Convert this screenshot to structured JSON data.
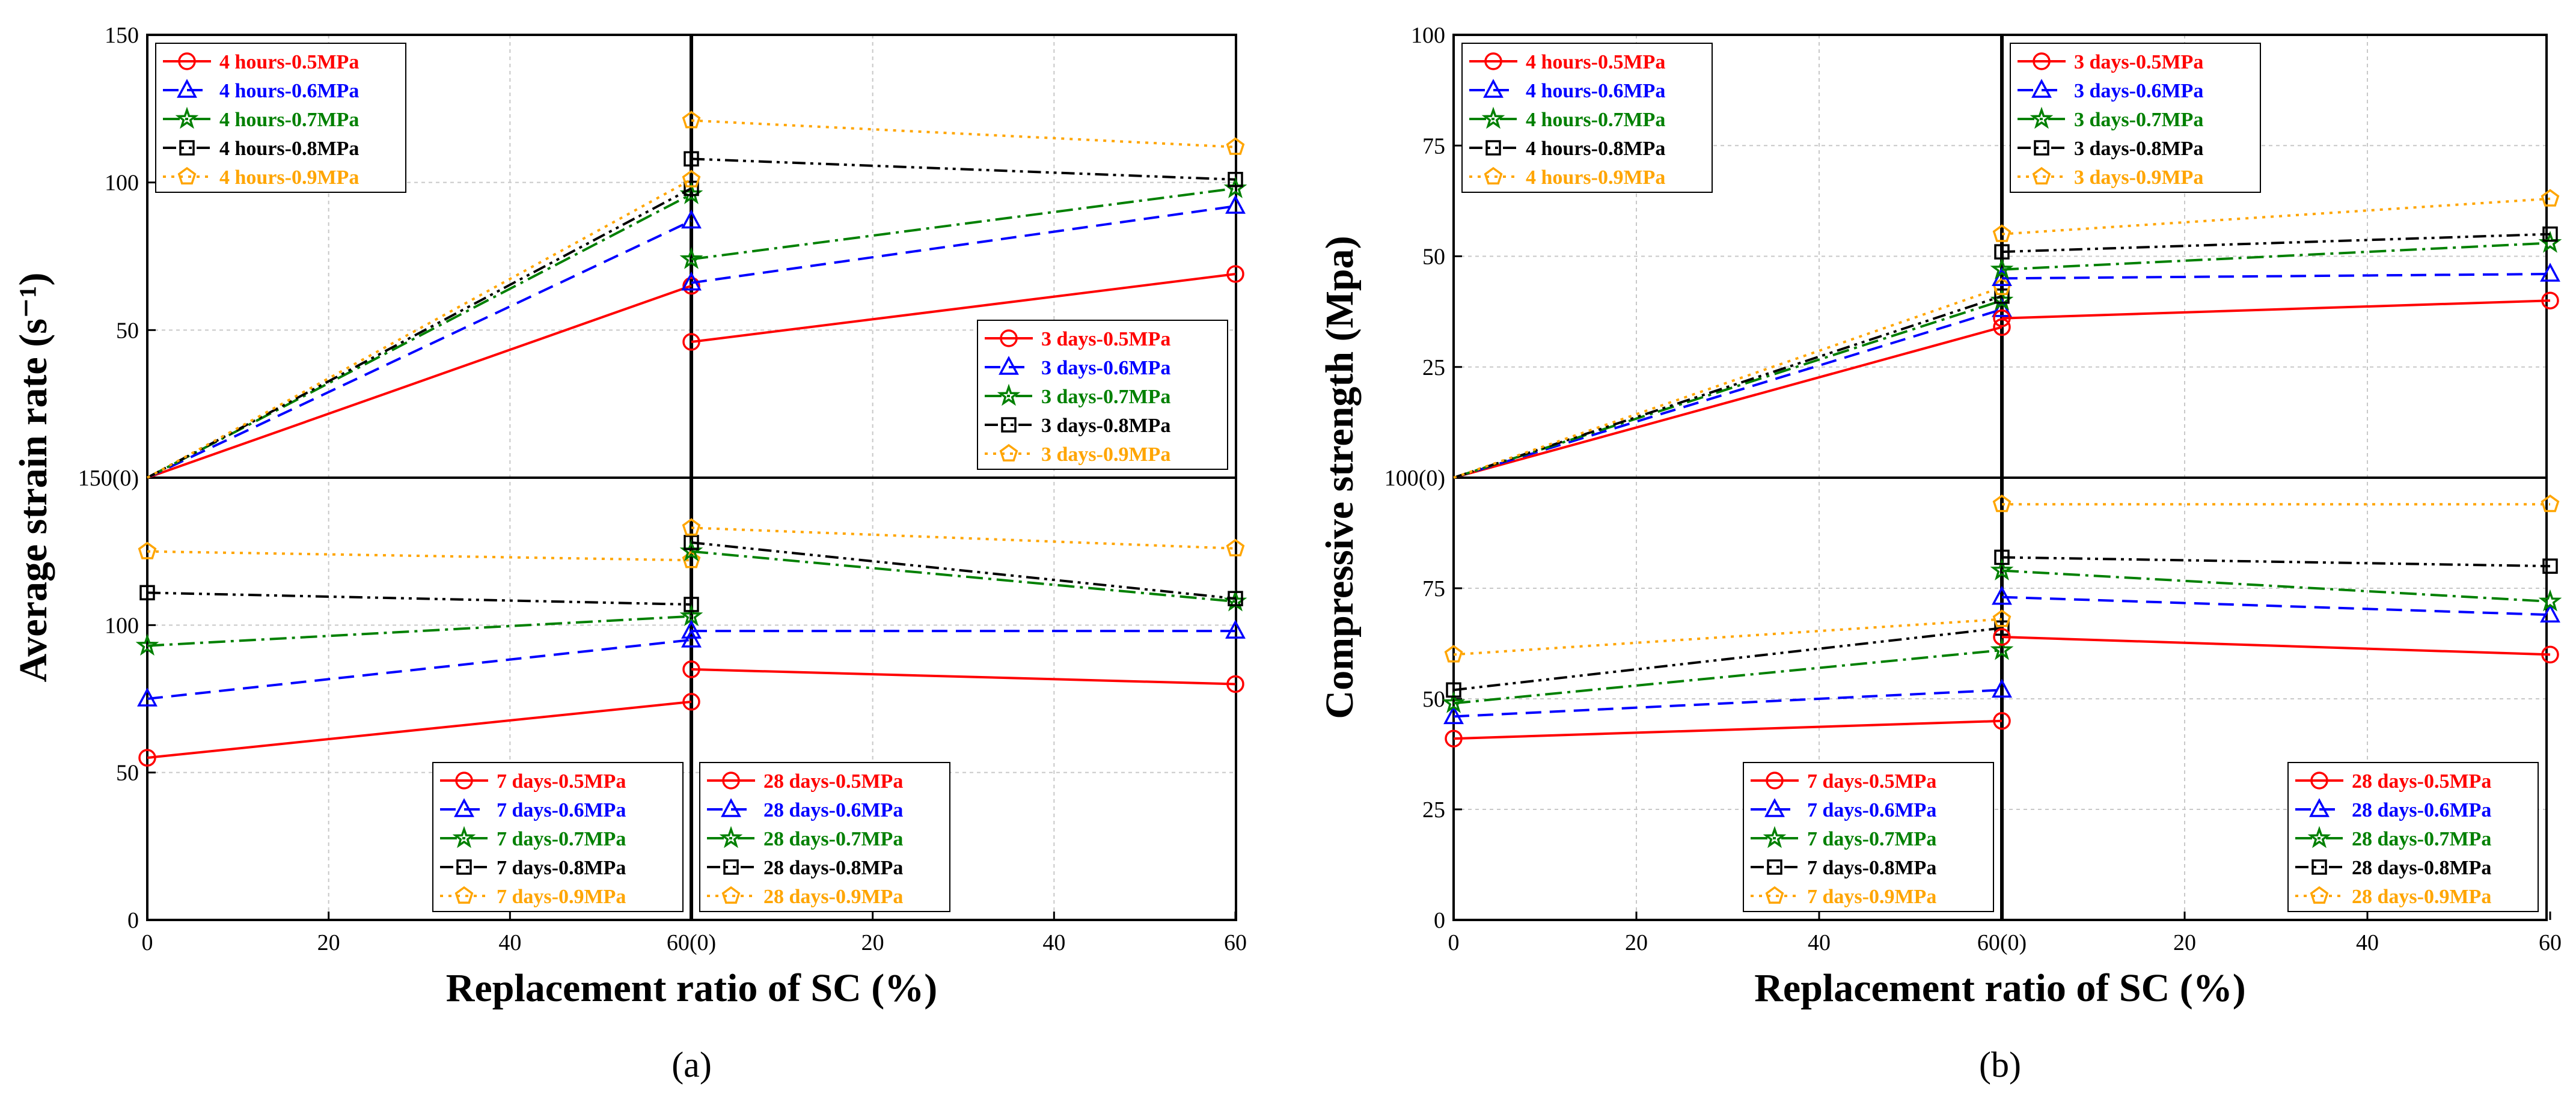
{
  "colors": {
    "p05": "#ff0000",
    "p06": "#0000ff",
    "p07": "#008000",
    "p08": "#000000",
    "p09": "#ffa500",
    "grid": "#c8c8c8",
    "axis": "#000000"
  },
  "chart_data": [
    {
      "id": "a",
      "type": "line",
      "caption": "(a)",
      "xlabel": "Replacement ratio of SC (%)",
      "ylabel": "Average strain rate (s⁻¹)",
      "x_ticks_left": [
        "0",
        "20",
        "40",
        "60(0)"
      ],
      "x_ticks_right": [
        "20",
        "40",
        "60"
      ],
      "xlim": [
        0,
        60
      ],
      "upper_y": {
        "ylim": [
          0,
          150
        ],
        "ticks": [
          "150(0)",
          "50",
          "100",
          "150"
        ]
      },
      "lower_y": {
        "ylim": [
          0,
          150
        ],
        "ticks": [
          "0",
          "50",
          "100"
        ]
      },
      "panels": [
        {
          "id": "a-top-left",
          "row": "top",
          "col": "left",
          "legend_position": "top-left",
          "series": [
            {
              "name": "4 hours-0.5MPa",
              "pressure": "p05",
              "x": [
                0,
                60
              ],
              "values": [
                0,
                65
              ]
            },
            {
              "name": "4 hours-0.6MPa",
              "pressure": "p06",
              "x": [
                0,
                60
              ],
              "values": [
                0,
                87
              ]
            },
            {
              "name": "4 hours-0.7MPa",
              "pressure": "p07",
              "x": [
                0,
                60
              ],
              "values": [
                0,
                96
              ]
            },
            {
              "name": "4 hours-0.8MPa",
              "pressure": "p08",
              "x": [
                0,
                60
              ],
              "values": [
                0,
                98
              ]
            },
            {
              "name": "4 hours-0.9MPa",
              "pressure": "p09",
              "x": [
                0,
                60
              ],
              "values": [
                0,
                101
              ]
            }
          ]
        },
        {
          "id": "a-top-right",
          "row": "top",
          "col": "right",
          "legend_position": "bottom-right",
          "series": [
            {
              "name": "3 days-0.5MPa",
              "pressure": "p05",
              "x": [
                0,
                60
              ],
              "values": [
                46,
                69
              ]
            },
            {
              "name": "3 days-0.6MPa",
              "pressure": "p06",
              "x": [
                0,
                60
              ],
              "values": [
                66,
                92
              ]
            },
            {
              "name": "3 days-0.7MPa",
              "pressure": "p07",
              "x": [
                0,
                60
              ],
              "values": [
                74,
                98
              ]
            },
            {
              "name": "3 days-0.8MPa",
              "pressure": "p08",
              "x": [
                0,
                60
              ],
              "values": [
                108,
                101
              ]
            },
            {
              "name": "3 days-0.9MPa",
              "pressure": "p09",
              "x": [
                0,
                60
              ],
              "values": [
                121,
                112
              ]
            }
          ]
        },
        {
          "id": "a-bottom-left",
          "row": "bottom",
          "col": "left",
          "legend_position": "bottom-right",
          "series": [
            {
              "name": "7 days-0.5MPa",
              "pressure": "p05",
              "x": [
                0,
                60
              ],
              "values": [
                55,
                74
              ]
            },
            {
              "name": "7 days-0.6MPa",
              "pressure": "p06",
              "x": [
                0,
                60
              ],
              "values": [
                75,
                95
              ]
            },
            {
              "name": "7 days-0.7MPa",
              "pressure": "p07",
              "x": [
                0,
                60
              ],
              "values": [
                93,
                103
              ]
            },
            {
              "name": "7 days-0.8MPa",
              "pressure": "p08",
              "x": [
                0,
                60
              ],
              "values": [
                111,
                107
              ]
            },
            {
              "name": "7 days-0.9MPa",
              "pressure": "p09",
              "x": [
                0,
                60
              ],
              "values": [
                125,
                122
              ]
            }
          ]
        },
        {
          "id": "a-bottom-right",
          "row": "bottom",
          "col": "right",
          "legend_position": "bottom-left",
          "series": [
            {
              "name": "28 days-0.5MPa",
              "pressure": "p05",
              "x": [
                0,
                60
              ],
              "values": [
                85,
                80
              ]
            },
            {
              "name": "28 days-0.6MPa",
              "pressure": "p06",
              "x": [
                0,
                60
              ],
              "values": [
                98,
                98
              ]
            },
            {
              "name": "28 days-0.7MPa",
              "pressure": "p07",
              "x": [
                0,
                60
              ],
              "values": [
                125,
                108
              ]
            },
            {
              "name": "28 days-0.8MPa",
              "pressure": "p08",
              "x": [
                0,
                60
              ],
              "values": [
                128,
                109
              ]
            },
            {
              "name": "28 days-0.9MPa",
              "pressure": "p09",
              "x": [
                0,
                60
              ],
              "values": [
                133,
                126
              ]
            }
          ]
        }
      ]
    },
    {
      "id": "b",
      "type": "line",
      "caption": "(b)",
      "xlabel": "Replacement ratio of SC (%)",
      "ylabel": "Compressive strength (Mpa)",
      "x_ticks_left": [
        "0",
        "20",
        "40",
        "60(0)"
      ],
      "x_ticks_right": [
        "20",
        "40",
        "60"
      ],
      "xlim": [
        0,
        60
      ],
      "upper_y": {
        "ylim": [
          0,
          100
        ],
        "ticks": [
          "100(0)",
          "25",
          "50",
          "75",
          "100"
        ]
      },
      "lower_y": {
        "ylim": [
          0,
          100
        ],
        "ticks": [
          "0",
          "25",
          "50",
          "75"
        ]
      },
      "panels": [
        {
          "id": "b-top-left",
          "row": "top",
          "col": "left",
          "legend_position": "top-left",
          "series": [
            {
              "name": "4 hours-0.5MPa",
              "pressure": "p05",
              "x": [
                0,
                60
              ],
              "values": [
                0,
                34
              ]
            },
            {
              "name": "4 hours-0.6MPa",
              "pressure": "p06",
              "x": [
                0,
                60
              ],
              "values": [
                0,
                38
              ]
            },
            {
              "name": "4 hours-0.7MPa",
              "pressure": "p07",
              "x": [
                0,
                60
              ],
              "values": [
                0,
                40
              ]
            },
            {
              "name": "4 hours-0.8MPa",
              "pressure": "p08",
              "x": [
                0,
                60
              ],
              "values": [
                0,
                41
              ]
            },
            {
              "name": "4 hours-0.9MPa",
              "pressure": "p09",
              "x": [
                0,
                60
              ],
              "values": [
                0,
                43
              ]
            }
          ]
        },
        {
          "id": "b-top-right",
          "row": "top",
          "col": "right",
          "legend_position": "top-left",
          "series": [
            {
              "name": "3 days-0.5MPa",
              "pressure": "p05",
              "x": [
                0,
                60
              ],
              "values": [
                36,
                40
              ]
            },
            {
              "name": "3 days-0.6MPa",
              "pressure": "p06",
              "x": [
                0,
                60
              ],
              "values": [
                45,
                46
              ]
            },
            {
              "name": "3 days-0.7MPa",
              "pressure": "p07",
              "x": [
                0,
                60
              ],
              "values": [
                47,
                53
              ]
            },
            {
              "name": "3 days-0.8MPa",
              "pressure": "p08",
              "x": [
                0,
                60
              ],
              "values": [
                51,
                55
              ]
            },
            {
              "name": "3 days-0.9MPa",
              "pressure": "p09",
              "x": [
                0,
                60
              ],
              "values": [
                55,
                63
              ]
            }
          ]
        },
        {
          "id": "b-bottom-left",
          "row": "bottom",
          "col": "left",
          "legend_position": "bottom-right",
          "series": [
            {
              "name": "7 days-0.5MPa",
              "pressure": "p05",
              "x": [
                0,
                60
              ],
              "values": [
                41,
                45
              ]
            },
            {
              "name": "7 days-0.6MPa",
              "pressure": "p06",
              "x": [
                0,
                60
              ],
              "values": [
                46,
                52
              ]
            },
            {
              "name": "7 days-0.7MPa",
              "pressure": "p07",
              "x": [
                0,
                60
              ],
              "values": [
                49,
                61
              ]
            },
            {
              "name": "7 days-0.8MPa",
              "pressure": "p08",
              "x": [
                0,
                60
              ],
              "values": [
                52,
                66
              ]
            },
            {
              "name": "7 days-0.9MPa",
              "pressure": "p09",
              "x": [
                0,
                60
              ],
              "values": [
                60,
                68
              ]
            }
          ]
        },
        {
          "id": "b-bottom-right",
          "row": "bottom",
          "col": "right",
          "legend_position": "bottom-right",
          "series": [
            {
              "name": "28 days-0.5MPa",
              "pressure": "p05",
              "x": [
                0,
                60
              ],
              "values": [
                64,
                60
              ]
            },
            {
              "name": "28 days-0.6MPa",
              "pressure": "p06",
              "x": [
                0,
                60
              ],
              "values": [
                73,
                69
              ]
            },
            {
              "name": "28 days-0.7MPa",
              "pressure": "p07",
              "x": [
                0,
                60
              ],
              "values": [
                79,
                72
              ]
            },
            {
              "name": "28 days-0.8MPa",
              "pressure": "p08",
              "x": [
                0,
                60
              ],
              "values": [
                82,
                80
              ]
            },
            {
              "name": "28 days-0.9MPa",
              "pressure": "p09",
              "x": [
                0,
                60
              ],
              "values": [
                94,
                94
              ]
            }
          ]
        }
      ]
    }
  ]
}
